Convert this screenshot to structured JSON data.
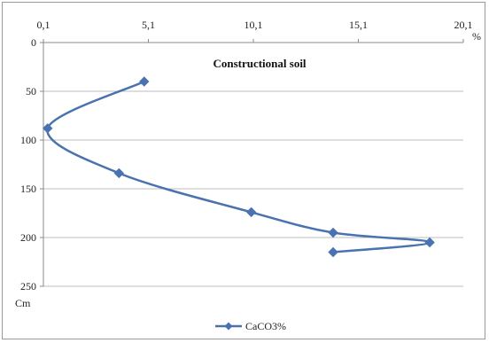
{
  "chart_data": {
    "type": "line",
    "title": "Constructional soil",
    "x_unit_label": "%",
    "y_unit_label": "Cm",
    "x_ticks": [
      "0,1",
      "5,1",
      "10,1",
      "15,1",
      "20,1"
    ],
    "x_tick_values": [
      0.1,
      5.1,
      10.1,
      15.1,
      20.1
    ],
    "y_ticks": [
      "0",
      "50",
      "100",
      "150",
      "200",
      "250"
    ],
    "y_tick_values": [
      0,
      50,
      100,
      150,
      200,
      250
    ],
    "xlim": [
      0.1,
      20.1
    ],
    "ylim": [
      0,
      250
    ],
    "y_inverted": true,
    "x_axis_position": "top",
    "grid": "horizontal",
    "legend_position": "bottom",
    "series": [
      {
        "name": "CaCO3%",
        "color": "#4a72b0",
        "marker": "diamond",
        "smooth": true,
        "points": [
          {
            "x": 4.9,
            "y": 40
          },
          {
            "x": 0.3,
            "y": 88
          },
          {
            "x": 3.7,
            "y": 134
          },
          {
            "x": 10.0,
            "y": 174
          },
          {
            "x": 13.9,
            "y": 195
          },
          {
            "x": 18.5,
            "y": 205
          },
          {
            "x": 13.9,
            "y": 215
          }
        ]
      }
    ]
  }
}
